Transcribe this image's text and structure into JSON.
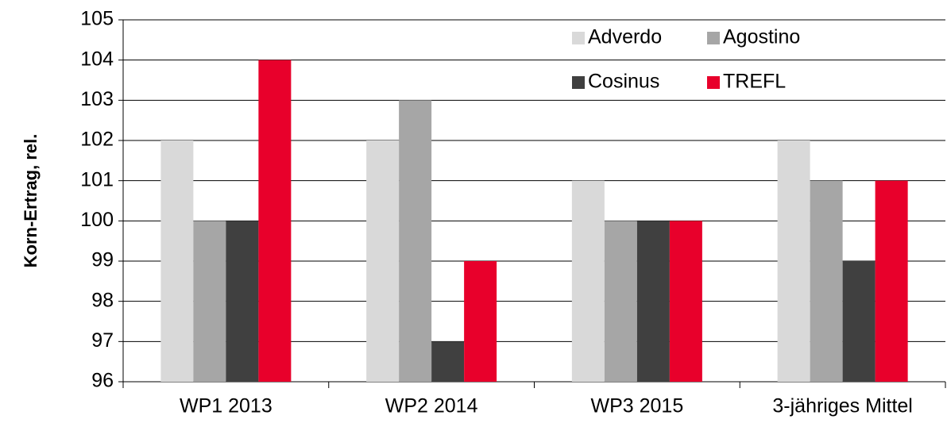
{
  "chart_data": {
    "type": "bar",
    "y_label": "Korn-Ertrag, rel.",
    "categories": [
      "WP1 2013",
      "WP2 2014",
      "WP3 2015",
      "3-jähriges Mittel"
    ],
    "series": [
      {
        "name": "Adverdo",
        "color": "#d9d9d9",
        "values": [
          102,
          102,
          101,
          102
        ]
      },
      {
        "name": "Agostino",
        "color": "#a6a6a6",
        "values": [
          100,
          103,
          100,
          101
        ]
      },
      {
        "name": "Cosinus",
        "color": "#404040",
        "values": [
          100,
          97,
          100,
          99
        ]
      },
      {
        "name": "TREFL",
        "color": "#e8002b",
        "values": [
          104,
          99,
          100,
          101
        ]
      }
    ],
    "ylim": [
      96,
      105
    ],
    "yticks": [
      96,
      97,
      98,
      99,
      100,
      101,
      102,
      103,
      104,
      105
    ],
    "grid": true,
    "legend": "top-right"
  }
}
